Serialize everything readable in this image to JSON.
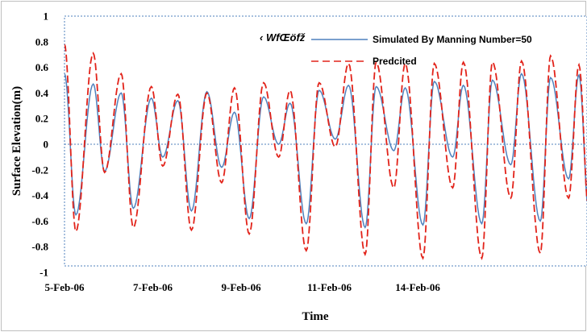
{
  "chart_data": {
    "type": "line",
    "title": "",
    "xlabel": "Time",
    "ylabel": "Surface Elevation(m)",
    "ylim": [
      -1,
      1
    ],
    "yticks": [
      1,
      0.8,
      0.6,
      0.4,
      0.2,
      0,
      -0.2,
      -0.4,
      -0.6,
      -0.8,
      -1
    ],
    "ytick_labels": [
      "1",
      "0.8",
      "0.6",
      "0.4",
      "0.2",
      "0",
      "-0.2",
      "-0.4",
      "-0.6",
      "-0.8",
      "-1"
    ],
    "xlim_days": [
      0,
      14.2
    ],
    "xticks": [
      {
        "label": "5-Feb-06",
        "day": 0
      },
      {
        "label": "7-Feb-06",
        "day": 2.4
      },
      {
        "label": "9-Feb-06",
        "day": 4.8
      },
      {
        "label": "11-Feb-06",
        "day": 7.2
      },
      {
        "label": "14-Feb-06",
        "day": 9.6
      }
    ],
    "legend": {
      "placement": "top-right",
      "garbled_text": "‹ WfŒöfž"
    },
    "series": [
      {
        "name": "Simulated By Manning Number=50",
        "color": "#4f81bd",
        "style": "solid",
        "hw": {
          "days": [
            0.0,
            0.78,
            1.54,
            2.36,
            3.08,
            3.87,
            4.62,
            5.41,
            6.13,
            6.92,
            7.72,
            8.47,
            9.26,
            10.05,
            10.84,
            11.63,
            12.42,
            13.21,
            13.98
          ],
          "values": [
            0.55,
            0.47,
            0.4,
            0.36,
            0.34,
            0.41,
            0.25,
            0.37,
            0.32,
            0.42,
            0.46,
            0.45,
            0.44,
            0.49,
            0.46,
            0.5,
            0.55,
            0.52,
            0.54
          ]
        },
        "lw": {
          "days": [
            0.31,
            1.09,
            1.87,
            2.67,
            3.45,
            4.27,
            5.02,
            5.82,
            6.57,
            7.36,
            8.17,
            8.95,
            9.74,
            10.55,
            11.34,
            12.13,
            12.93,
            13.7
          ],
          "values": [
            -0.55,
            -0.21,
            -0.5,
            -0.1,
            -0.52,
            -0.18,
            -0.58,
            -0.0,
            -0.62,
            0.04,
            -0.65,
            -0.05,
            -0.63,
            -0.1,
            -0.62,
            -0.16,
            -0.6,
            -0.27
          ]
        }
      },
      {
        "name": "Predcited",
        "color": "#e2231a",
        "style": "dashed",
        "hw": {
          "days": [
            0.0,
            0.78,
            1.54,
            2.36,
            3.08,
            3.87,
            4.62,
            5.41,
            6.13,
            6.92,
            7.72,
            8.47,
            9.26,
            10.05,
            10.84,
            11.63,
            12.42,
            13.21,
            13.98
          ],
          "values": [
            0.78,
            0.71,
            0.55,
            0.45,
            0.39,
            0.4,
            0.44,
            0.48,
            0.42,
            0.48,
            0.63,
            0.64,
            0.63,
            0.63,
            0.64,
            0.64,
            0.65,
            0.69,
            0.62
          ]
        },
        "lw": {
          "days": [
            0.31,
            1.09,
            1.87,
            2.67,
            3.45,
            4.27,
            5.02,
            5.82,
            6.57,
            7.36,
            8.17,
            8.95,
            9.74,
            10.55,
            11.34,
            12.13,
            12.93,
            13.7
          ],
          "values": [
            -0.68,
            -0.22,
            -0.65,
            -0.17,
            -0.67,
            -0.3,
            -0.7,
            -0.1,
            -0.83,
            -0.02,
            -0.86,
            -0.34,
            -0.89,
            -0.34,
            -0.89,
            -0.42,
            -0.85,
            -0.42
          ]
        }
      }
    ]
  }
}
